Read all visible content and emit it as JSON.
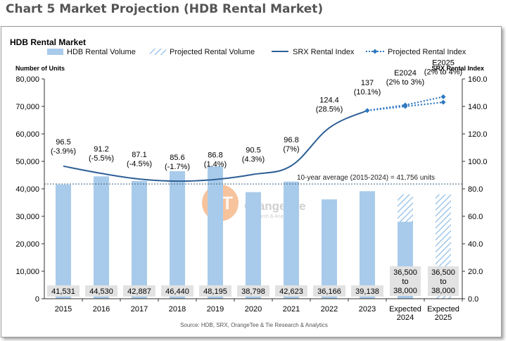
{
  "page": {
    "outer_title": "Chart 5 Market Projection (HDB Rental Market)"
  },
  "chart_data": {
    "type": "bar+line",
    "title": "HDB Rental Market",
    "categories": [
      "2015",
      "2016",
      "2017",
      "2018",
      "2019",
      "2020",
      "2021",
      "2022",
      "2023",
      "Expected 2024",
      "Expected 2025"
    ],
    "category_lines": [
      [
        "2015"
      ],
      [
        "2016"
      ],
      [
        "2017"
      ],
      [
        "2018"
      ],
      [
        "2019"
      ],
      [
        "2020"
      ],
      [
        "2021"
      ],
      [
        "2022"
      ],
      [
        "2023"
      ],
      [
        "Expected",
        "2024"
      ],
      [
        "Expected",
        "2025"
      ]
    ],
    "left_axis": {
      "label": "Number of Units",
      "min": 0,
      "max": 80000,
      "ticks": [
        "0",
        "10,000",
        "20,000",
        "30,000",
        "40,000",
        "50,000",
        "60,000",
        "70,000",
        "80,000"
      ]
    },
    "right_axis": {
      "label": "SRX Rental Index",
      "min": 0,
      "max": 160,
      "ticks": [
        "0.0",
        "20.0",
        "40.0",
        "60.0",
        "80.0",
        "100.0",
        "120.0",
        "140.0",
        "160.0"
      ]
    },
    "legend": [
      {
        "name": "HDB Rental Volume",
        "style": "solid-bar"
      },
      {
        "name": "Projected Rental Volume",
        "style": "hatched-bar"
      },
      {
        "name": "SRX Rental Index",
        "style": "solid-line"
      },
      {
        "name": "Projected Rental Index",
        "style": "dotted-line"
      }
    ],
    "legend_placement": "top",
    "rental_volume": [
      41531,
      44530,
      42887,
      46440,
      48195,
      38798,
      42623,
      36166,
      39138
    ],
    "volume_labels": [
      [
        "41,531"
      ],
      [
        "44,530"
      ],
      [
        "42,887"
      ],
      [
        "46,440"
      ],
      [
        "48,195"
      ],
      [
        "38,798"
      ],
      [
        "42,623"
      ],
      [
        "36,166"
      ],
      [
        "39,138"
      ],
      [
        "36,500",
        "to",
        "38,000"
      ],
      [
        "36,500",
        "to",
        "38,000"
      ]
    ],
    "projected_volume": [
      {
        "category": "Expected 2024",
        "low": 36500,
        "high": 38000,
        "ytd_solid": 28000
      },
      {
        "category": "Expected 2025",
        "low": 36500,
        "high": 38000
      }
    ],
    "srx_index": [
      96.5,
      91.2,
      87.1,
      85.6,
      86.8,
      90.5,
      96.8,
      124.4,
      137
    ],
    "srx_labels": [
      [
        "96.5",
        "(-3.9%)"
      ],
      [
        "91.2",
        "(-5.5%)"
      ],
      [
        "87.1",
        "(-4.5%)"
      ],
      [
        "85.6",
        "(-1.7%)"
      ],
      [
        "86.8",
        "(1.4%)"
      ],
      [
        "90.5",
        "(4.3%)"
      ],
      [
        "96.8",
        "(7%)"
      ],
      [
        "124.4",
        "(28.5%)"
      ],
      [
        "137",
        "(10.1%)"
      ],
      [
        "E2024",
        "(2% to 3%)"
      ],
      [
        "E2025",
        "(2% to 4%)"
      ]
    ],
    "projected_index_low": [
      137,
      140,
      143
    ],
    "projected_index_high": [
      137,
      141,
      147
    ],
    "average_line": {
      "value": 41756,
      "label": "10-year average (2015-2024) = 41,756 units"
    },
    "watermark": {
      "name": "OrangeTee",
      "sub": "Research & Analytics"
    },
    "source": "Source: HDB, SRX, OrangeTee & Tie Research & Analytics",
    "grid": false,
    "colors": {
      "bar": "#a9cbeb",
      "bar_projected": "#bcd9f1",
      "line": "#2e5f96",
      "projected_line": "#2e78c0",
      "average": "#3b5f7a",
      "label_box": "#e2e2e2",
      "watermark": "#f29b5c"
    }
  }
}
